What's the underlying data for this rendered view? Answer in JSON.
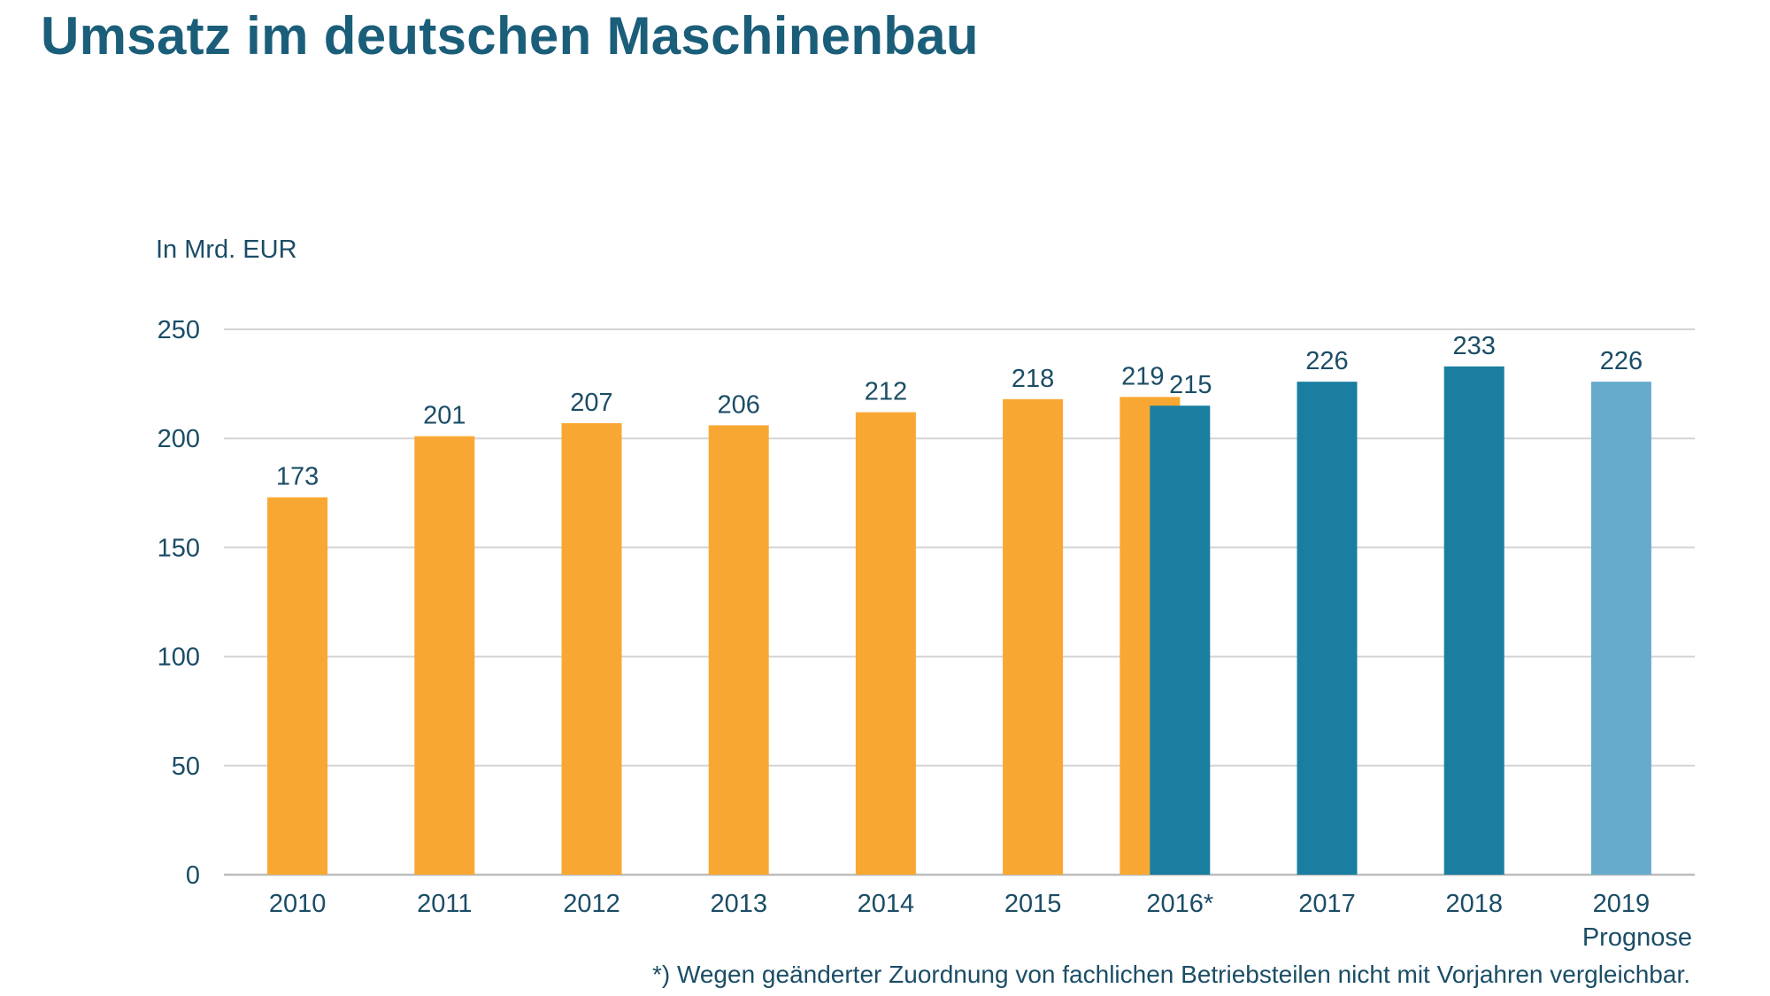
{
  "title": "Umsatz im deutschen Maschinenbau",
  "colors": {
    "title": "#1b5e7a",
    "text": "#1b4d66",
    "grid": "#d4d4d4",
    "axis": "#bdbdbd"
  },
  "chart_data": {
    "type": "bar",
    "title": "Umsatz im deutschen Maschinenbau",
    "unit_label": "In Mrd. EUR",
    "ylim": [
      0,
      250
    ],
    "yticks": [
      0,
      50,
      100,
      150,
      200,
      250
    ],
    "grid": true,
    "categories": [
      {
        "label": "2010",
        "sublabel": ""
      },
      {
        "label": "2011",
        "sublabel": ""
      },
      {
        "label": "2012",
        "sublabel": ""
      },
      {
        "label": "2013",
        "sublabel": ""
      },
      {
        "label": "2014",
        "sublabel": ""
      },
      {
        "label": "2015",
        "sublabel": ""
      },
      {
        "label": "2016*",
        "sublabel": ""
      },
      {
        "label": "2017",
        "sublabel": ""
      },
      {
        "label": "2018",
        "sublabel": ""
      },
      {
        "label": "2019",
        "sublabel": "Prognose"
      }
    ],
    "bars": [
      {
        "category": 0,
        "value": 173,
        "label": "173",
        "color": "#f8a832"
      },
      {
        "category": 1,
        "value": 201,
        "label": "201",
        "color": "#f8a832"
      },
      {
        "category": 2,
        "value": 207,
        "label": "207",
        "color": "#f8a832"
      },
      {
        "category": 3,
        "value": 206,
        "label": "206",
        "color": "#f8a832"
      },
      {
        "category": 4,
        "value": 212,
        "label": "212",
        "color": "#f8a832"
      },
      {
        "category": 5,
        "value": 218,
        "label": "218",
        "color": "#f8a832"
      },
      {
        "category": 6,
        "value": 219,
        "label": "219",
        "color": "#f8a832",
        "pair": "old"
      },
      {
        "category": 6,
        "value": 215,
        "label": "215",
        "color": "#1a7ea1",
        "pair": "new"
      },
      {
        "category": 7,
        "value": 226,
        "label": "226",
        "color": "#1a7ea1"
      },
      {
        "category": 8,
        "value": 233,
        "label": "233",
        "color": "#1a7ea1"
      },
      {
        "category": 9,
        "value": 226,
        "label": "226",
        "color": "#66abcb"
      }
    ],
    "footnote": "*) Wegen geänderter Zuordnung von fachlichen Betriebsteilen nicht mit Vorjahren vergleichbar."
  }
}
